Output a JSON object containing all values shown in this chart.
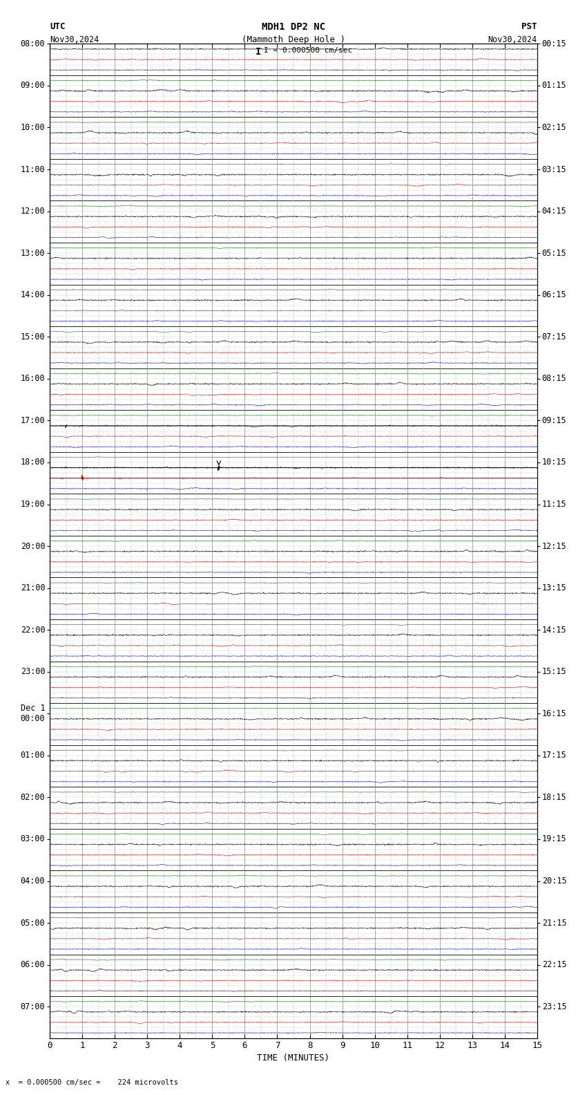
{
  "title_line1": "MDH1 DP2 NC",
  "title_line2": "(Mammoth Deep Hole )",
  "scale_label": "I = 0.000500 cm/sec",
  "utc_label": "UTC",
  "utc_date": "Nov30,2024",
  "pst_label": "PST",
  "pst_date": "Nov30,2024",
  "xlabel": "TIME (MINUTES)",
  "bottom_note": "x  = 0.000500 cm/sec =    224 microvolts",
  "xmin": 0,
  "xmax": 15,
  "bg_color": "#ffffff",
  "trace_color_black": "#000000",
  "trace_color_red": "#cc0000",
  "trace_color_blue": "#0000cc",
  "trace_color_green": "#006600",
  "grid_color": "#888888",
  "n_rows": 95,
  "utc_times_idx": [
    0,
    4,
    8,
    12,
    16,
    20,
    24,
    28,
    32,
    36,
    40,
    44,
    48,
    52,
    56,
    60,
    64,
    68,
    72,
    76,
    80,
    84,
    88,
    92
  ],
  "utc_times_labels": [
    "08:00",
    "09:00",
    "10:00",
    "11:00",
    "12:00",
    "13:00",
    "14:00",
    "15:00",
    "16:00",
    "17:00",
    "18:00",
    "19:00",
    "20:00",
    "21:00",
    "22:00",
    "23:00",
    "Dec 1\n00:00",
    "01:00",
    "02:00",
    "03:00",
    "04:00",
    "05:00",
    "06:00",
    "07:00"
  ],
  "pst_times_idx": [
    0,
    4,
    8,
    12,
    16,
    20,
    24,
    28,
    32,
    36,
    40,
    44,
    48,
    52,
    56,
    60,
    64,
    68,
    72,
    76,
    80,
    84,
    88,
    92
  ],
  "pst_times_labels": [
    "00:15",
    "01:15",
    "02:15",
    "03:15",
    "04:15",
    "05:15",
    "06:15",
    "07:15",
    "08:15",
    "09:15",
    "10:15",
    "11:15",
    "12:15",
    "13:15",
    "14:15",
    "15:15",
    "16:15",
    "17:15",
    "18:15",
    "19:15",
    "20:15",
    "21:15",
    "22:15",
    "23:15"
  ],
  "row_colors": [
    "black",
    "red",
    "blue",
    "green",
    "black",
    "red",
    "blue",
    "green",
    "black",
    "red",
    "blue",
    "green",
    "black",
    "red",
    "blue",
    "green",
    "black",
    "red",
    "blue",
    "green",
    "black",
    "red",
    "blue",
    "green",
    "black",
    "red",
    "blue",
    "green",
    "black",
    "red",
    "blue",
    "green",
    "black",
    "red",
    "blue",
    "green",
    "black",
    "red",
    "blue",
    "green",
    "black",
    "red",
    "blue",
    "green",
    "black",
    "red",
    "blue",
    "green",
    "black",
    "red",
    "blue",
    "green",
    "black",
    "red",
    "blue",
    "green",
    "black",
    "red",
    "blue",
    "green",
    "black",
    "red",
    "blue",
    "green",
    "black",
    "red",
    "blue",
    "green",
    "black",
    "red",
    "blue",
    "green",
    "black",
    "red",
    "blue",
    "green",
    "black",
    "red",
    "blue",
    "green",
    "black",
    "red",
    "blue",
    "green",
    "black",
    "red",
    "blue",
    "green",
    "black",
    "red",
    "blue",
    "green",
    "black",
    "red",
    "blue"
  ],
  "event_row_18": 40,
  "event_row_17": 36,
  "figsize": [
    8.5,
    15.84
  ],
  "dpi": 100
}
